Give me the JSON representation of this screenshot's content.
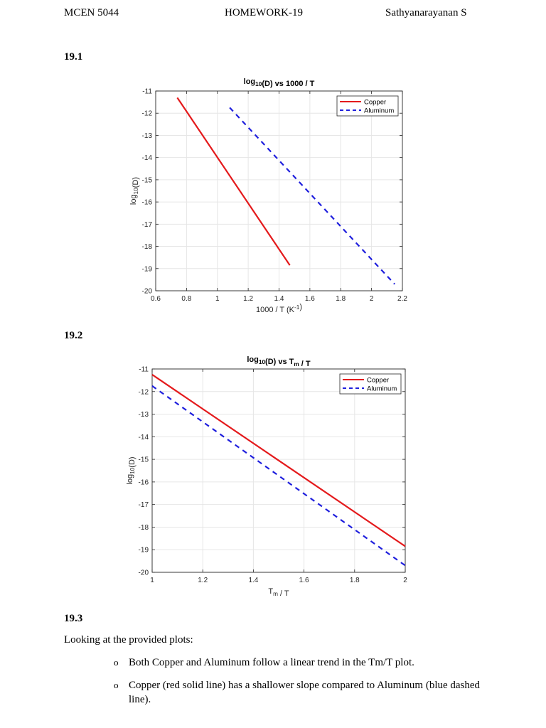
{
  "header": {
    "course": "MCEN 5044",
    "assignment": "HOMEWORK-19",
    "author": "Sathyanarayanan S"
  },
  "sections": {
    "s1": "19.1",
    "s2": "19.2",
    "s3": "19.3"
  },
  "chart_data": [
    {
      "type": "line",
      "title": "log10(D) vs 1000 / T",
      "xlabel": "1000 / T (K^-1)",
      "ylabel": "log10(D)",
      "xlim": [
        0.6,
        2.2
      ],
      "ylim": [
        -20,
        -11
      ],
      "xticks": [
        "0.6",
        "0.8",
        "1",
        "1.2",
        "1.4",
        "1.6",
        "1.8",
        "2",
        "2.2"
      ],
      "yticks": [
        "-11",
        "-12",
        "-13",
        "-14",
        "-15",
        "-16",
        "-17",
        "-18",
        "-19",
        "-20"
      ],
      "grid": true,
      "legend_position": "top-right",
      "series": [
        {
          "name": "Copper",
          "color": "#e41a1c",
          "style": "solid",
          "x": [
            0.74,
            1.47
          ],
          "y": [
            -11.3,
            -18.85
          ]
        },
        {
          "name": "Aluminum",
          "color": "#1f1fdd",
          "style": "dashed",
          "x": [
            1.08,
            2.15
          ],
          "y": [
            -11.75,
            -19.7
          ]
        }
      ]
    },
    {
      "type": "line",
      "title": "log10(D) vs Tm / T",
      "xlabel": "Tm / T",
      "ylabel": "log10(D)",
      "xlim": [
        1,
        2
      ],
      "ylim": [
        -20,
        -11
      ],
      "xticks": [
        "1",
        "1.2",
        "1.4",
        "1.6",
        "1.8",
        "2"
      ],
      "yticks": [
        "-11",
        "-12",
        "-13",
        "-14",
        "-15",
        "-16",
        "-17",
        "-18",
        "-19",
        "-20"
      ],
      "grid": true,
      "legend_position": "top-right",
      "series": [
        {
          "name": "Copper",
          "color": "#e41a1c",
          "style": "solid",
          "x": [
            1,
            2
          ],
          "y": [
            -11.25,
            -18.85
          ]
        },
        {
          "name": "Aluminum",
          "color": "#1f1fdd",
          "style": "dashed",
          "x": [
            1,
            2
          ],
          "y": [
            -11.75,
            -19.7
          ]
        }
      ]
    }
  ],
  "content": {
    "intro": "Looking at the provided plots:",
    "bullets": [
      "Both Copper and Aluminum follow a linear trend in the Tm/T plot.",
      "Copper (red solid line) has a shallower slope compared to Aluminum (blue dashed line)."
    ]
  }
}
